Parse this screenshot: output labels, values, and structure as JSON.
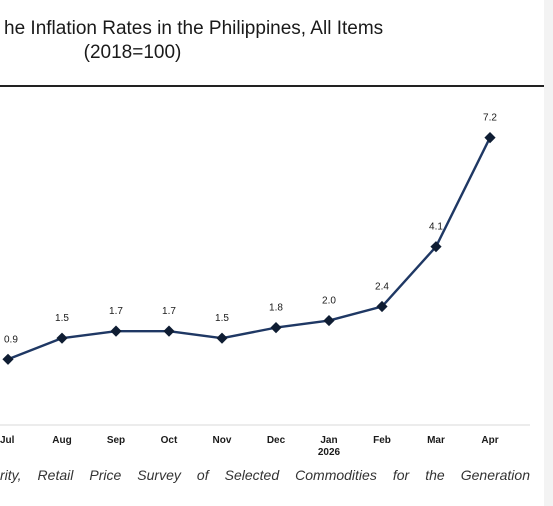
{
  "title": {
    "line1": "he Inflation Rates in the Philippines, All Items",
    "line2": "(2018=100)"
  },
  "source_fragment": "rity, Retail Price Survey of Selected Commodities for the Generation",
  "chart_data": {
    "type": "line",
    "categories": [
      "Jul",
      "Aug",
      "Sep",
      "Oct",
      "Nov",
      "Dec",
      "Jan\n2026",
      "Feb",
      "Mar",
      "Apr"
    ],
    "values": [
      0.9,
      1.5,
      1.7,
      1.7,
      1.5,
      1.8,
      2.0,
      2.4,
      4.1,
      7.2
    ],
    "data_labels": [
      "0.9",
      "1.5",
      "1.7",
      "1.7",
      "1.5",
      "1.8",
      "2.0",
      "2.4",
      "4.1",
      "7.2"
    ],
    "ylim": [
      -0.2,
      7.7
    ],
    "line_color": "#1f3864",
    "marker": "diamond",
    "marker_color": "#0f1d33",
    "grid": false
  }
}
